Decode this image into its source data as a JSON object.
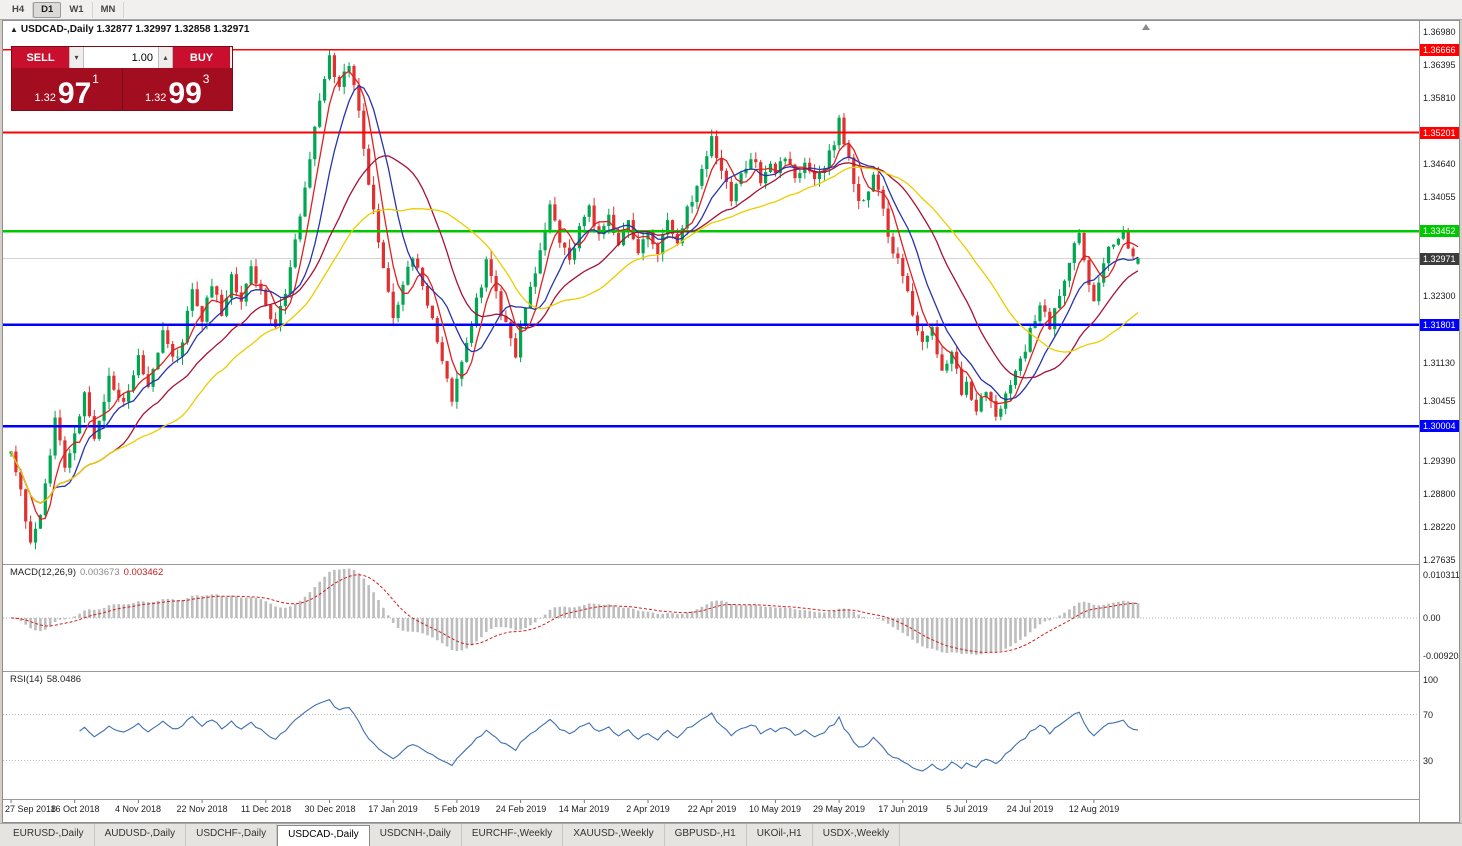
{
  "toolbar": {
    "timeframes": [
      {
        "label": "H4",
        "active": false
      },
      {
        "label": "D1",
        "active": true
      },
      {
        "label": "W1",
        "active": false
      },
      {
        "label": "MN",
        "active": false
      }
    ]
  },
  "window": {
    "title_arrow": "▲",
    "symbol": "USDCAD-,Daily",
    "ohlc": "1.32877 1.32997 1.32858 1.32971"
  },
  "trade_panel": {
    "sell_label": "SELL",
    "buy_label": "BUY",
    "volume": "1.00",
    "sell_price": {
      "prefix": "1.32",
      "big": "97",
      "sup": "1"
    },
    "buy_price": {
      "prefix": "1.32",
      "big": "99",
      "sup": "3"
    }
  },
  "icons": {
    "caret_down": "▾",
    "caret_up": "▴"
  },
  "macd": {
    "header": "MACD(12,26,9)",
    "main_value": "0.003673",
    "signal_value": "0.003462",
    "axis": [
      "0.010311",
      "0.00",
      "-0.009203"
    ]
  },
  "rsi": {
    "header": "RSI(14)",
    "value": "58.0486",
    "axis": [
      "100",
      "70",
      "30"
    ],
    "levels": [
      70,
      30
    ]
  },
  "chart_data": {
    "type": "candlestick",
    "symbol": "USDCAD",
    "timeframe": "Daily",
    "title": "USDCAD-,Daily",
    "last": {
      "open": 1.32877,
      "high": 1.32997,
      "low": 1.32858,
      "close": 1.32971
    },
    "bid": 1.32971,
    "ask": 1.32993,
    "ylim": [
      1.27564,
      1.37175
    ],
    "y_axis_labels": [
      "1.36980",
      "1.36395",
      "1.35810",
      "1.34640",
      "1.34055",
      "1.32300",
      "1.31130",
      "1.30455",
      "1.29390",
      "1.28800",
      "1.28220",
      "1.27635"
    ],
    "levels": [
      {
        "price": 1.36666,
        "label": "1.36666",
        "color": "#FF0000",
        "width": 1.8
      },
      {
        "price": 1.35201,
        "label": "1.35201",
        "color": "#FF0000",
        "width": 1.8
      },
      {
        "price": 1.33452,
        "label": "1.33452",
        "color": "#00C800",
        "width": 2.6
      },
      {
        "price": 1.31801,
        "label": "1.31801",
        "color": "#0000FF",
        "width": 2.6
      },
      {
        "price": 1.30004,
        "label": "1.30004",
        "color": "#0000FF",
        "width": 2.6
      }
    ],
    "current_price": {
      "price": 1.32971,
      "label": "1.32971"
    },
    "up_color": "#00A651",
    "down_color": "#E03030",
    "moving_averages": [
      {
        "period": 5,
        "color": "#E02020"
      },
      {
        "period": 10,
        "color": "#2833AD"
      },
      {
        "period": 21,
        "color": "#A81236"
      },
      {
        "period": 34,
        "color": "#EACD00"
      }
    ],
    "indicators": {
      "macd": {
        "fast": 12,
        "slow": 26,
        "signal": 9
      },
      "rsi": {
        "period": 14
      }
    },
    "candles_count": 231,
    "close_anchors": [
      [
        0,
        1.2955
      ],
      [
        2,
        1.288
      ],
      [
        4,
        1.28
      ],
      [
        6,
        1.2845
      ],
      [
        9,
        1.301
      ],
      [
        11,
        1.2935
      ],
      [
        13,
        1.2985
      ],
      [
        15,
        1.306
      ],
      [
        17,
        1.298
      ],
      [
        20,
        1.3085
      ],
      [
        23,
        1.304
      ],
      [
        26,
        1.312
      ],
      [
        28,
        1.3075
      ],
      [
        31,
        1.3165
      ],
      [
        34,
        1.3115
      ],
      [
        37,
        1.3245
      ],
      [
        39,
        1.3185
      ],
      [
        41,
        1.3255
      ],
      [
        43,
        1.3195
      ],
      [
        45,
        1.327
      ],
      [
        47,
        1.322
      ],
      [
        49,
        1.329
      ],
      [
        51,
        1.3235
      ],
      [
        54,
        1.318
      ],
      [
        56,
        1.324
      ],
      [
        58,
        1.333
      ],
      [
        60,
        1.342
      ],
      [
        62,
        1.353
      ],
      [
        64,
        1.362
      ],
      [
        65,
        1.365
      ],
      [
        67,
        1.36
      ],
      [
        69,
        1.364
      ],
      [
        71,
        1.356
      ],
      [
        73,
        1.342
      ],
      [
        75,
        1.333
      ],
      [
        78,
        1.3185
      ],
      [
        80,
        1.325
      ],
      [
        82,
        1.3305
      ],
      [
        84,
        1.325
      ],
      [
        86,
        1.319
      ],
      [
        88,
        1.311
      ],
      [
        90,
        1.305
      ],
      [
        91,
        1.3085
      ],
      [
        93,
        1.315
      ],
      [
        95,
        1.322
      ],
      [
        97,
        1.329
      ],
      [
        99,
        1.323
      ],
      [
        101,
        1.318
      ],
      [
        103,
        1.313
      ],
      [
        104,
        1.317
      ],
      [
        106,
        1.324
      ],
      [
        108,
        1.331
      ],
      [
        110,
        1.3395
      ],
      [
        112,
        1.3335
      ],
      [
        114,
        1.329
      ],
      [
        116,
        1.335
      ],
      [
        118,
        1.339
      ],
      [
        120,
        1.333
      ],
      [
        122,
        1.338
      ],
      [
        124,
        1.332
      ],
      [
        126,
        1.3365
      ],
      [
        128,
        1.331
      ],
      [
        130,
        1.335
      ],
      [
        132,
        1.331
      ],
      [
        134,
        1.337
      ],
      [
        136,
        1.3325
      ],
      [
        138,
        1.338
      ],
      [
        140,
        1.343
      ],
      [
        142,
        1.348
      ],
      [
        143,
        1.351
      ],
      [
        145,
        1.345
      ],
      [
        147,
        1.3405
      ],
      [
        149,
        1.345
      ],
      [
        151,
        1.348
      ],
      [
        153,
        1.344
      ],
      [
        155,
        1.347
      ],
      [
        156,
        1.345
      ],
      [
        158,
        1.348
      ],
      [
        160,
        1.344
      ],
      [
        162,
        1.347
      ],
      [
        164,
        1.343
      ],
      [
        166,
        1.346
      ],
      [
        168,
        1.3505
      ],
      [
        169,
        1.354
      ],
      [
        171,
        1.347
      ],
      [
        173,
        1.339
      ],
      [
        176,
        1.344
      ],
      [
        178,
        1.338
      ],
      [
        180,
        1.331
      ],
      [
        182,
        1.327
      ],
      [
        184,
        1.32
      ],
      [
        186,
        1.314
      ],
      [
        188,
        1.318
      ],
      [
        190,
        1.309
      ],
      [
        192,
        1.313
      ],
      [
        194,
        1.306
      ],
      [
        195,
        1.308
      ],
      [
        197,
        1.303
      ],
      [
        199,
        1.306
      ],
      [
        201,
        1.302
      ],
      [
        203,
        1.305
      ],
      [
        205,
        1.309
      ],
      [
        207,
        1.314
      ],
      [
        208,
        1.317
      ],
      [
        210,
        1.322
      ],
      [
        212,
        1.318
      ],
      [
        214,
        1.324
      ],
      [
        216,
        1.329
      ],
      [
        218,
        1.334
      ],
      [
        220,
        1.325
      ],
      [
        221,
        1.3225
      ],
      [
        223,
        1.329
      ],
      [
        225,
        1.333
      ],
      [
        227,
        1.334
      ],
      [
        229,
        1.3305
      ],
      [
        230,
        1.3297
      ]
    ],
    "x_labels": [
      {
        "i": 0,
        "label": "27 Sep 2018"
      },
      {
        "i": 13,
        "label": "16 Oct 2018"
      },
      {
        "i": 26,
        "label": "4 Nov 2018"
      },
      {
        "i": 39,
        "label": "22 Nov 2018"
      },
      {
        "i": 52,
        "label": "11 Dec 2018"
      },
      {
        "i": 65,
        "label": "30 Dec 2018"
      },
      {
        "i": 78,
        "label": "17 Jan 2019"
      },
      {
        "i": 91,
        "label": "5 Feb 2019"
      },
      {
        "i": 104,
        "label": "24 Feb 2019"
      },
      {
        "i": 117,
        "label": "14 Mar 2019"
      },
      {
        "i": 130,
        "label": "2 Apr 2019"
      },
      {
        "i": 143,
        "label": "22 Apr 2019"
      },
      {
        "i": 156,
        "label": "10 May 2019"
      },
      {
        "i": 169,
        "label": "29 May 2019"
      },
      {
        "i": 182,
        "label": "17 Jun 2019"
      },
      {
        "i": 195,
        "label": "5 Jul 2019"
      },
      {
        "i": 208,
        "label": "24 Jul 2019"
      },
      {
        "i": 221,
        "label": "12 Aug 2019"
      }
    ]
  },
  "tabs": [
    {
      "label": "EURUSD-,Daily",
      "active": false
    },
    {
      "label": "AUDUSD-,Daily",
      "active": false
    },
    {
      "label": "USDCHF-,Daily",
      "active": false
    },
    {
      "label": "USDCAD-,Daily",
      "active": true
    },
    {
      "label": "USDCNH-,Daily",
      "active": false
    },
    {
      "label": "EURCHF-,Weekly",
      "active": false
    },
    {
      "label": "XAUUSD-,Weekly",
      "active": false
    },
    {
      "label": "GBPUSD-,H1",
      "active": false
    },
    {
      "label": "UKOil-,H1",
      "active": false
    },
    {
      "label": "USDX-,Weekly",
      "active": false
    }
  ]
}
